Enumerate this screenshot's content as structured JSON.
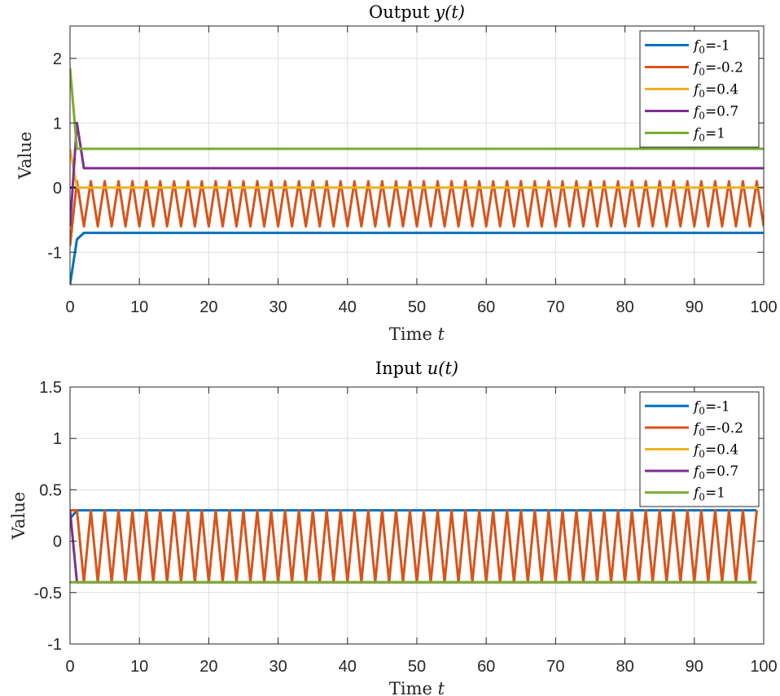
{
  "chart_data": [
    {
      "type": "line",
      "title": "Output y(t)",
      "title_text": "Output ",
      "title_math": "y(t)",
      "xlabel_text": "Time ",
      "xlabel_math": "t",
      "ylabel": "Value",
      "xlim": [
        0,
        100
      ],
      "ylim": [
        -1.5,
        2.5
      ],
      "xticks": [
        0,
        10,
        20,
        30,
        40,
        50,
        60,
        70,
        80,
        90,
        100
      ],
      "yticks": [
        -1,
        0,
        1,
        2
      ],
      "grid": true,
      "legend_position": "top-right",
      "reference_line": {
        "y": 0,
        "color": "#000000"
      },
      "series": [
        {
          "name": "f0=-1",
          "label_prefix": "f",
          "label_sub": "0",
          "label_value": "=-1",
          "color": "#0072BD",
          "kind": "poly",
          "x": [
            0,
            1,
            2,
            100
          ],
          "y": [
            -1.5,
            -0.8,
            -0.7,
            -0.7
          ]
        },
        {
          "name": "f0=-0.2",
          "label_prefix": "f",
          "label_sub": "0",
          "label_value": "=-0.2",
          "color": "#D95319",
          "kind": "zigzag",
          "x_start": 0,
          "x_end": 100,
          "y_first": -0.9,
          "y_high": 0.1,
          "y_low": -0.6
        },
        {
          "name": "f0=0.4",
          "label_prefix": "f",
          "label_sub": "0",
          "label_value": "=0.4",
          "color": "#EDB120",
          "kind": "poly",
          "x": [
            0,
            1,
            100
          ],
          "y": [
            0.6,
            0,
            0
          ]
        },
        {
          "name": "f0=0.7",
          "label_prefix": "f",
          "label_sub": "0",
          "label_value": "=0.7",
          "color": "#7E2F8E",
          "kind": "poly",
          "x": [
            0,
            1,
            2,
            100
          ],
          "y": [
            -0.6,
            1.0,
            0.3,
            0.3
          ]
        },
        {
          "name": "f0=1",
          "label_prefix": "f",
          "label_sub": "0",
          "label_value": "=1",
          "color": "#77AC30",
          "kind": "poly",
          "x": [
            0,
            1,
            100
          ],
          "y": [
            1.85,
            0.6,
            0.6
          ]
        }
      ]
    },
    {
      "type": "line",
      "title": "Input u(t)",
      "title_text": "Input ",
      "title_math": "u(t)",
      "xlabel_text": "Time ",
      "xlabel_math": "t",
      "ylabel": "Value",
      "xlim": [
        0,
        100
      ],
      "ylim": [
        -1,
        1.5
      ],
      "xticks": [
        0,
        10,
        20,
        30,
        40,
        50,
        60,
        70,
        80,
        90,
        100
      ],
      "yticks": [
        -1,
        -0.5,
        0,
        0.5,
        1,
        1.5
      ],
      "grid": true,
      "legend_position": "top-right",
      "series": [
        {
          "name": "f0=-1",
          "label_prefix": "f",
          "label_sub": "0",
          "label_value": "=-1",
          "color": "#0072BD",
          "kind": "poly",
          "x": [
            0,
            1,
            99
          ],
          "y": [
            0.22,
            0.3,
            0.3
          ]
        },
        {
          "name": "f0=-0.2",
          "label_prefix": "f",
          "label_sub": "0",
          "label_value": "=-0.2",
          "color": "#D95319",
          "kind": "zigzag",
          "x_start": 0,
          "x_end": 99,
          "y_first": 0.3,
          "y_high": 0.3,
          "y_low": -0.4
        },
        {
          "name": "f0=0.4",
          "label_prefix": "f",
          "label_sub": "0",
          "label_value": "=0.4",
          "color": "#EDB120",
          "kind": "poly",
          "x": [
            0,
            1,
            99
          ],
          "y": [
            -0.4,
            -0.4,
            -0.4
          ]
        },
        {
          "name": "f0=0.7",
          "label_prefix": "f",
          "label_sub": "0",
          "label_value": "=0.7",
          "color": "#7E2F8E",
          "kind": "poly",
          "x": [
            0,
            1,
            99
          ],
          "y": [
            0.3,
            -0.4,
            -0.4
          ]
        },
        {
          "name": "f0=1",
          "label_prefix": "f",
          "label_sub": "0",
          "label_value": "=1",
          "color": "#77AC30",
          "kind": "poly",
          "x": [
            0,
            1,
            99
          ],
          "y": [
            -0.4,
            -0.4,
            -0.4
          ]
        }
      ]
    }
  ]
}
